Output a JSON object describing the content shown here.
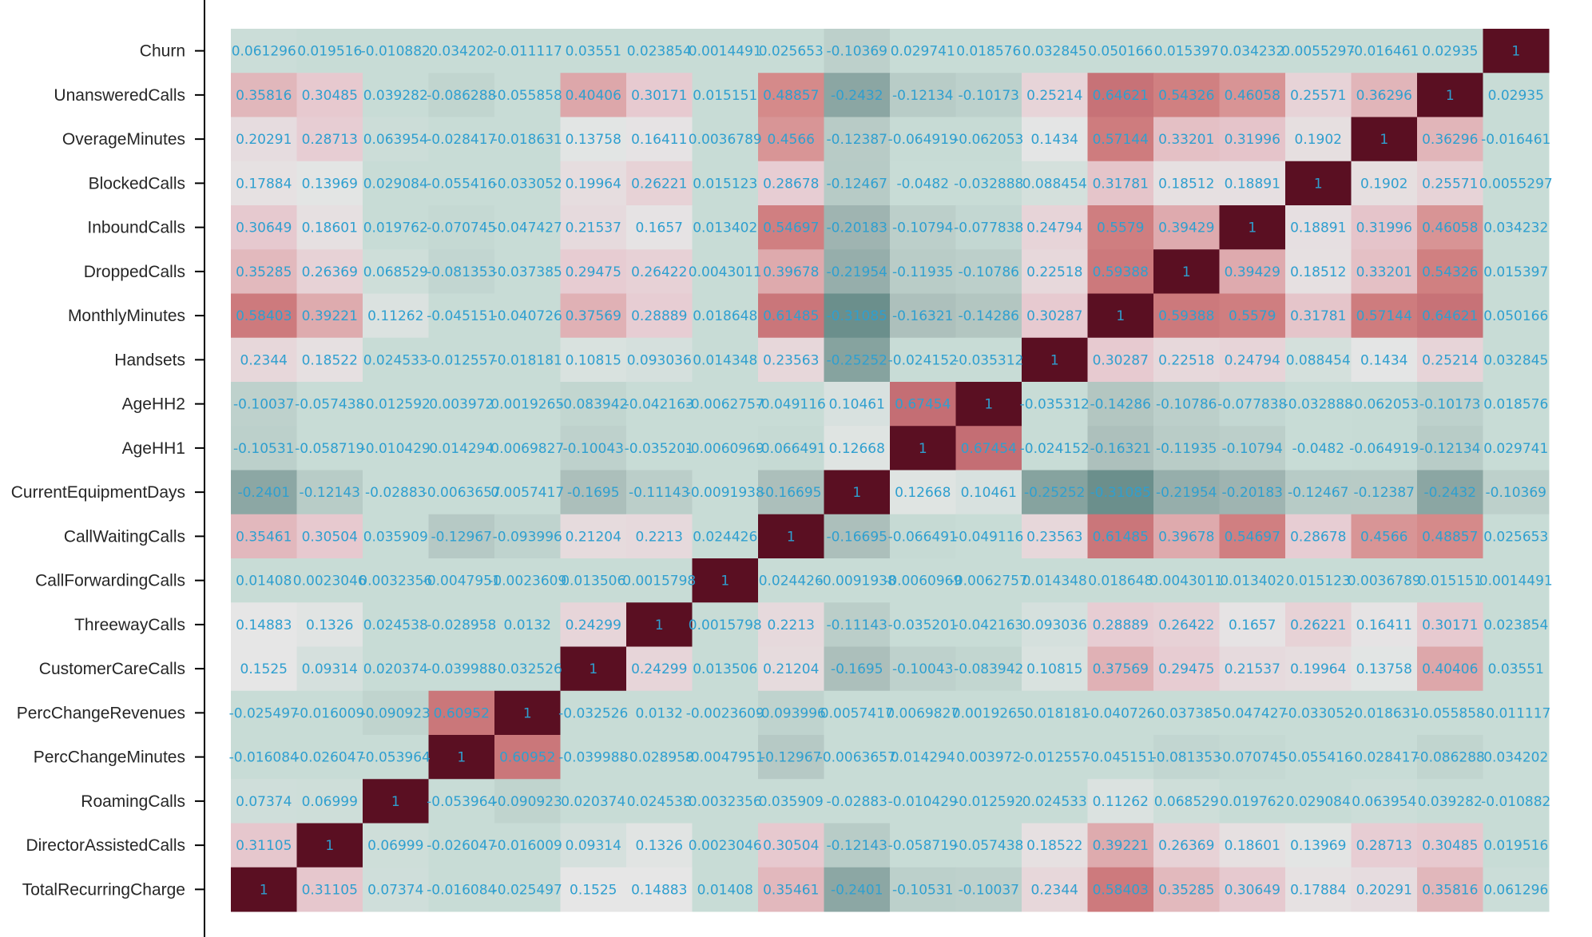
{
  "chart_data": {
    "type": "heatmap",
    "colors": {
      "colormap": [
        "#6b8f8c",
        "#a9bcb8",
        "#c8dcd6",
        "#e6e6e6",
        "#e7cbd1",
        "#d48686",
        "#c46d73",
        "#5a0f22"
      ],
      "text": "#2f9fcf",
      "frame": "#000000"
    },
    "x_labels": [
      "TotalRecurringCharge",
      "DirectorAssistedCalls",
      "RoamingCalls",
      "PercChangeMinutes",
      "PercChangeRevenues",
      "CustomerCareCalls",
      "ThreewayCalls",
      "CallForwardingCalls",
      "CallWaitingCalls",
      "CurrentEquipmentDays",
      "AgeHH1",
      "AgeHH2",
      "Handsets",
      "MonthlyMinutes",
      "DroppedCalls",
      "InboundCalls",
      "BlockedCalls",
      "OverageMinutes",
      "UnansweredCalls",
      "Churn"
    ],
    "y_labels": [
      "Churn",
      "UnansweredCalls",
      "OverageMinutes",
      "BlockedCalls",
      "InboundCalls",
      "DroppedCalls",
      "MonthlyMinutes",
      "Handsets",
      "AgeHH2",
      "AgeHH1",
      "CurrentEquipmentDays",
      "CallWaitingCalls",
      "CallForwardingCalls",
      "ThreewayCalls",
      "CustomerCareCalls",
      "PercChangeRevenues",
      "PercChangeMinutes",
      "RoamingCalls",
      "DirectorAssistedCalls",
      "TotalRecurringCharge"
    ],
    "values": [
      [
        0.061296,
        0.019516,
        -0.010882,
        0.034202,
        -0.011117,
        0.03551,
        0.023854,
        0.0014491,
        0.025653,
        -0.10369,
        0.029741,
        0.018576,
        0.032845,
        0.050166,
        0.015397,
        0.034232,
        0.0055297,
        -0.016461,
        0.02935,
        1
      ],
      [
        0.35816,
        0.30485,
        0.039282,
        -0.086288,
        -0.055858,
        0.40406,
        0.30171,
        0.015151,
        0.48857,
        -0.2432,
        -0.12134,
        -0.10173,
        0.25214,
        0.64621,
        0.54326,
        0.46058,
        0.25571,
        0.36296,
        1,
        0.02935
      ],
      [
        0.20291,
        0.28713,
        0.063954,
        -0.028417,
        -0.018631,
        0.13758,
        0.16411,
        0.0036789,
        0.4566,
        -0.12387,
        -0.064919,
        -0.062053,
        0.1434,
        0.57144,
        0.33201,
        0.31996,
        0.1902,
        1,
        0.36296,
        -0.016461
      ],
      [
        0.17884,
        0.13969,
        0.029084,
        -0.055416,
        -0.033052,
        0.19964,
        0.26221,
        0.015123,
        0.28678,
        -0.12467,
        -0.0482,
        -0.032888,
        0.088454,
        0.31781,
        0.18512,
        0.18891,
        1,
        0.1902,
        0.25571,
        0.0055297
      ],
      [
        0.30649,
        0.18601,
        0.019762,
        -0.070745,
        -0.047427,
        0.21537,
        0.1657,
        0.013402,
        0.54697,
        -0.20183,
        -0.10794,
        -0.077838,
        0.24794,
        0.5579,
        0.39429,
        1,
        0.18891,
        0.31996,
        0.46058,
        0.034232
      ],
      [
        0.35285,
        0.26369,
        0.068529,
        -0.081353,
        -0.037385,
        0.29475,
        0.26422,
        0.0043011,
        0.39678,
        -0.21954,
        -0.11935,
        -0.10786,
        0.22518,
        0.59388,
        1,
        0.39429,
        0.18512,
        0.33201,
        0.54326,
        0.015397
      ],
      [
        0.58403,
        0.39221,
        0.11262,
        -0.045151,
        -0.040726,
        0.37569,
        0.28889,
        0.018648,
        0.61485,
        -0.31085,
        -0.16321,
        -0.14286,
        0.30287,
        1,
        0.59388,
        0.5579,
        0.31781,
        0.57144,
        0.64621,
        0.050166
      ],
      [
        0.2344,
        0.18522,
        0.024533,
        -0.012557,
        -0.018181,
        0.10815,
        0.093036,
        0.014348,
        0.23563,
        -0.25252,
        -0.024152,
        -0.035312,
        1,
        0.30287,
        0.22518,
        0.24794,
        0.088454,
        0.1434,
        0.25214,
        0.032845
      ],
      [
        -0.10037,
        -0.057438,
        -0.012592,
        0.003972,
        0.0019265,
        -0.083942,
        -0.042163,
        -0.0062757,
        -0.049116,
        0.10461,
        0.67454,
        1,
        -0.035312,
        -0.14286,
        -0.10786,
        -0.077838,
        -0.032888,
        -0.062053,
        -0.10173,
        0.018576
      ],
      [
        -0.10531,
        -0.058719,
        -0.010429,
        0.014294,
        0.0069827,
        -0.10043,
        -0.035201,
        -0.0060969,
        -0.066491,
        0.12668,
        1,
        0.67454,
        -0.024152,
        -0.16321,
        -0.11935,
        -0.10794,
        -0.0482,
        -0.064919,
        -0.12134,
        0.029741
      ],
      [
        -0.2401,
        -0.12143,
        -0.02883,
        -0.0063657,
        0.0057417,
        -0.1695,
        -0.11143,
        -0.0091938,
        -0.16695,
        1,
        0.12668,
        0.10461,
        -0.25252,
        -0.31085,
        -0.21954,
        -0.20183,
        -0.12467,
        -0.12387,
        -0.2432,
        -0.10369
      ],
      [
        0.35461,
        0.30504,
        0.035909,
        -0.12967,
        -0.093996,
        0.21204,
        0.2213,
        0.024426,
        1,
        -0.16695,
        -0.066491,
        -0.049116,
        0.23563,
        0.61485,
        0.39678,
        0.54697,
        0.28678,
        0.4566,
        0.48857,
        0.025653
      ],
      [
        0.01408,
        0.0023046,
        0.0032356,
        -0.0047951,
        -0.0023609,
        0.013506,
        0.0015798,
        1,
        0.024426,
        -0.0091938,
        -0.0060969,
        -0.0062757,
        0.014348,
        0.018648,
        0.0043011,
        0.013402,
        0.015123,
        0.0036789,
        0.015151,
        0.0014491
      ],
      [
        0.14883,
        0.1326,
        0.024538,
        -0.028958,
        0.0132,
        0.24299,
        1,
        0.0015798,
        0.2213,
        -0.11143,
        -0.035201,
        -0.042163,
        0.093036,
        0.28889,
        0.26422,
        0.1657,
        0.26221,
        0.16411,
        0.30171,
        0.023854
      ],
      [
        0.1525,
        0.09314,
        0.020374,
        -0.039988,
        -0.032526,
        1,
        0.24299,
        0.013506,
        0.21204,
        -0.1695,
        -0.10043,
        -0.083942,
        0.10815,
        0.37569,
        0.29475,
        0.21537,
        0.19964,
        0.13758,
        0.40406,
        0.03551
      ],
      [
        -0.025497,
        -0.016009,
        -0.090923,
        0.60952,
        1,
        -0.032526,
        0.0132,
        -0.0023609,
        -0.093996,
        0.0057417,
        0.0069827,
        0.0019265,
        -0.018181,
        -0.040726,
        -0.037385,
        -0.047427,
        -0.033052,
        -0.018631,
        -0.055858,
        -0.011117
      ],
      [
        -0.016084,
        -0.026047,
        -0.053964,
        1,
        0.60952,
        -0.039988,
        -0.028958,
        -0.0047951,
        -0.12967,
        -0.0063657,
        0.014294,
        0.003972,
        -0.012557,
        -0.045151,
        -0.081353,
        -0.070745,
        -0.055416,
        -0.028417,
        -0.086288,
        0.034202
      ],
      [
        0.07374,
        0.06999,
        1,
        -0.053964,
        -0.090923,
        0.020374,
        0.024538,
        0.0032356,
        0.035909,
        -0.02883,
        -0.010429,
        -0.012592,
        0.024533,
        0.11262,
        0.068529,
        0.019762,
        0.029084,
        0.063954,
        0.039282,
        -0.010882
      ],
      [
        0.31105,
        1,
        0.06999,
        -0.026047,
        -0.016009,
        0.09314,
        0.1326,
        0.0023046,
        0.30504,
        -0.12143,
        -0.058719,
        -0.057438,
        0.18522,
        0.39221,
        0.26369,
        0.18601,
        0.13969,
        0.28713,
        0.30485,
        0.019516
      ],
      [
        1,
        0.31105,
        0.07374,
        -0.016084,
        -0.025497,
        0.1525,
        0.14883,
        0.01408,
        0.35461,
        -0.2401,
        -0.10531,
        -0.10037,
        0.2344,
        0.58403,
        0.35285,
        0.30649,
        0.17884,
        0.20291,
        0.35816,
        0.061296
      ]
    ],
    "value_labels": [
      [
        "0.061296",
        "0.019516",
        "-0.010882",
        "0.034202",
        "-0.011117",
        "0.03551",
        "0.023854",
        "0.0014491",
        "0.025653",
        "-0.10369",
        "0.029741",
        "0.018576",
        "0.032845",
        "0.050166",
        "0.015397",
        "0.034232",
        "0.0055297",
        "-0.016461",
        "0.02935",
        "1"
      ],
      [
        "0.35816",
        "0.30485",
        "0.039282",
        "-0.086288",
        "-0.055858",
        "0.40406",
        "0.30171",
        "0.015151",
        "0.48857",
        "-0.2432",
        "-0.12134",
        "-0.10173",
        "0.25214",
        "0.64621",
        "0.54326",
        "0.46058",
        "0.25571",
        "0.36296",
        "1",
        "0.02935"
      ],
      [
        "0.20291",
        "0.28713",
        "0.063954",
        "-0.028417",
        "-0.018631",
        "0.13758",
        "0.16411",
        "0.0036789",
        "0.4566",
        "-0.12387",
        "-0.064919",
        "-0.062053",
        "0.1434",
        "0.57144",
        "0.33201",
        "0.31996",
        "0.1902",
        "1",
        "0.36296",
        "-0.016461"
      ],
      [
        "0.17884",
        "0.13969",
        "0.029084",
        "-0.055416",
        "-0.033052",
        "0.19964",
        "0.26221",
        "0.015123",
        "0.28678",
        "-0.12467",
        "-0.0482",
        "-0.032888",
        "0.088454",
        "0.31781",
        "0.18512",
        "0.18891",
        "1",
        "0.1902",
        "0.25571",
        "0.0055297"
      ],
      [
        "0.30649",
        "0.18601",
        "0.019762",
        "-0.070745",
        "-0.047427",
        "0.21537",
        "0.1657",
        "0.013402",
        "0.54697",
        "-0.20183",
        "-0.10794",
        "-0.077838",
        "0.24794",
        "0.5579",
        "0.39429",
        "1",
        "0.18891",
        "0.31996",
        "0.46058",
        "0.034232"
      ],
      [
        "0.35285",
        "0.26369",
        "0.068529",
        "-0.081353",
        "-0.037385",
        "0.29475",
        "0.26422",
        "0.0043011",
        "0.39678",
        "-0.21954",
        "-0.11935",
        "-0.10786",
        "0.22518",
        "0.59388",
        "1",
        "0.39429",
        "0.18512",
        "0.33201",
        "0.54326",
        "0.015397"
      ],
      [
        "0.58403",
        "0.39221",
        "0.11262",
        "-0.045151",
        "-0.040726",
        "0.37569",
        "0.28889",
        "0.018648",
        "0.61485",
        "-0.31085",
        "-0.16321",
        "-0.14286",
        "0.30287",
        "1",
        "0.59388",
        "0.5579",
        "0.31781",
        "0.57144",
        "0.64621",
        "0.050166"
      ],
      [
        "0.2344",
        "0.18522",
        "0.024533",
        "-0.012557",
        "-0.018181",
        "0.10815",
        "0.093036",
        "0.014348",
        "0.23563",
        "-0.25252",
        "-0.024152",
        "-0.035312",
        "1",
        "0.30287",
        "0.22518",
        "0.24794",
        "0.088454",
        "0.1434",
        "0.25214",
        "0.032845"
      ],
      [
        "-0.10037",
        "-0.057438",
        "-0.012592",
        "0.003972",
        "0.0019265",
        "-0.083942",
        "-0.042163",
        "-0.0062757",
        "-0.049116",
        "0.10461",
        "0.67454",
        "1",
        "-0.035312",
        "-0.14286",
        "-0.10786",
        "-0.077838",
        "-0.032888",
        "-0.062053",
        "-0.10173",
        "0.018576"
      ],
      [
        "-0.10531",
        "-0.058719",
        "-0.010429",
        "0.014294",
        "0.0069827",
        "-0.10043",
        "-0.035201",
        "-0.0060969",
        "-0.066491",
        "0.12668",
        "1",
        "0.67454",
        "-0.024152",
        "-0.16321",
        "-0.11935",
        "-0.10794",
        "-0.0482",
        "-0.064919",
        "-0.12134",
        "0.029741"
      ],
      [
        "-0.2401",
        "-0.12143",
        "-0.02883",
        "-0.0063657",
        "0.0057417",
        "-0.1695",
        "-0.11143",
        "-0.0091938",
        "-0.16695",
        "1",
        "0.12668",
        "0.10461",
        "-0.25252",
        "-0.31085",
        "-0.21954",
        "-0.20183",
        "-0.12467",
        "-0.12387",
        "-0.2432",
        "-0.10369"
      ],
      [
        "0.35461",
        "0.30504",
        "0.035909",
        "-0.12967",
        "-0.093996",
        "0.21204",
        "0.2213",
        "0.024426",
        "1",
        "-0.16695",
        "-0.066491",
        "-0.049116",
        "0.23563",
        "0.61485",
        "0.39678",
        "0.54697",
        "0.28678",
        "0.4566",
        "0.48857",
        "0.025653"
      ],
      [
        "0.01408",
        "0.0023046",
        "0.0032356",
        "-0.0047951",
        "-0.0023609",
        "0.013506",
        "0.0015798",
        "1",
        "0.024426",
        "-0.0091938",
        "-0.0060969",
        "-0.0062757",
        "0.014348",
        "0.018648",
        "0.0043011",
        "0.013402",
        "0.015123",
        "0.0036789",
        "0.015151",
        "0.0014491"
      ],
      [
        "0.14883",
        "0.1326",
        "0.024538",
        "-0.028958",
        "0.0132",
        "0.24299",
        "1",
        "0.0015798",
        "0.2213",
        "-0.11143",
        "-0.035201",
        "-0.042163",
        "0.093036",
        "0.28889",
        "0.26422",
        "0.1657",
        "0.26221",
        "0.16411",
        "0.30171",
        "0.023854"
      ],
      [
        "0.1525",
        "0.09314",
        "0.020374",
        "-0.039988",
        "-0.032526",
        "1",
        "0.24299",
        "0.013506",
        "0.21204",
        "-0.1695",
        "-0.10043",
        "-0.083942",
        "0.10815",
        "0.37569",
        "0.29475",
        "0.21537",
        "0.19964",
        "0.13758",
        "0.40406",
        "0.03551"
      ],
      [
        "-0.025497",
        "-0.016009",
        "-0.090923",
        "0.60952",
        "1",
        "-0.032526",
        "0.0132",
        "-0.0023609",
        "-0.093996",
        "0.0057417",
        "0.0069827",
        "0.0019265",
        "-0.018181",
        "-0.040726",
        "-0.037385",
        "-0.047427",
        "-0.033052",
        "-0.018631",
        "-0.055858",
        "-0.011117"
      ],
      [
        "-0.016084",
        "-0.026047",
        "-0.053964",
        "1",
        "0.60952",
        "-0.039988",
        "-0.028958",
        "-0.0047951",
        "-0.12967",
        "-0.0063657",
        "0.014294",
        "0.003972",
        "-0.012557",
        "-0.045151",
        "-0.081353",
        "-0.070745",
        "-0.055416",
        "-0.028417",
        "-0.086288",
        "0.034202"
      ],
      [
        "0.07374",
        "0.06999",
        "1",
        "-0.053964",
        "-0.090923",
        "0.020374",
        "0.024538",
        "0.0032356",
        "0.035909",
        "-0.02883",
        "-0.010429",
        "-0.012592",
        "0.024533",
        "0.11262",
        "0.068529",
        "0.019762",
        "0.029084",
        "0.063954",
        "0.039282",
        "-0.010882"
      ],
      [
        "0.31105",
        "1",
        "0.06999",
        "-0.026047",
        "-0.016009",
        "0.09314",
        "0.1326",
        "0.0023046",
        "0.30504",
        "-0.12143",
        "-0.058719",
        "-0.057438",
        "0.18522",
        "0.39221",
        "0.26369",
        "0.18601",
        "0.13969",
        "0.28713",
        "0.30485",
        "0.019516"
      ],
      [
        "1",
        "0.31105",
        "0.07374",
        "-0.016084",
        "-0.025497",
        "0.1525",
        "0.14883",
        "0.01408",
        "0.35461",
        "-0.2401",
        "-0.10531",
        "-0.10037",
        "0.2344",
        "0.58403",
        "0.35285",
        "0.30649",
        "0.17884",
        "0.20291",
        "0.35816",
        "0.061296"
      ]
    ]
  }
}
